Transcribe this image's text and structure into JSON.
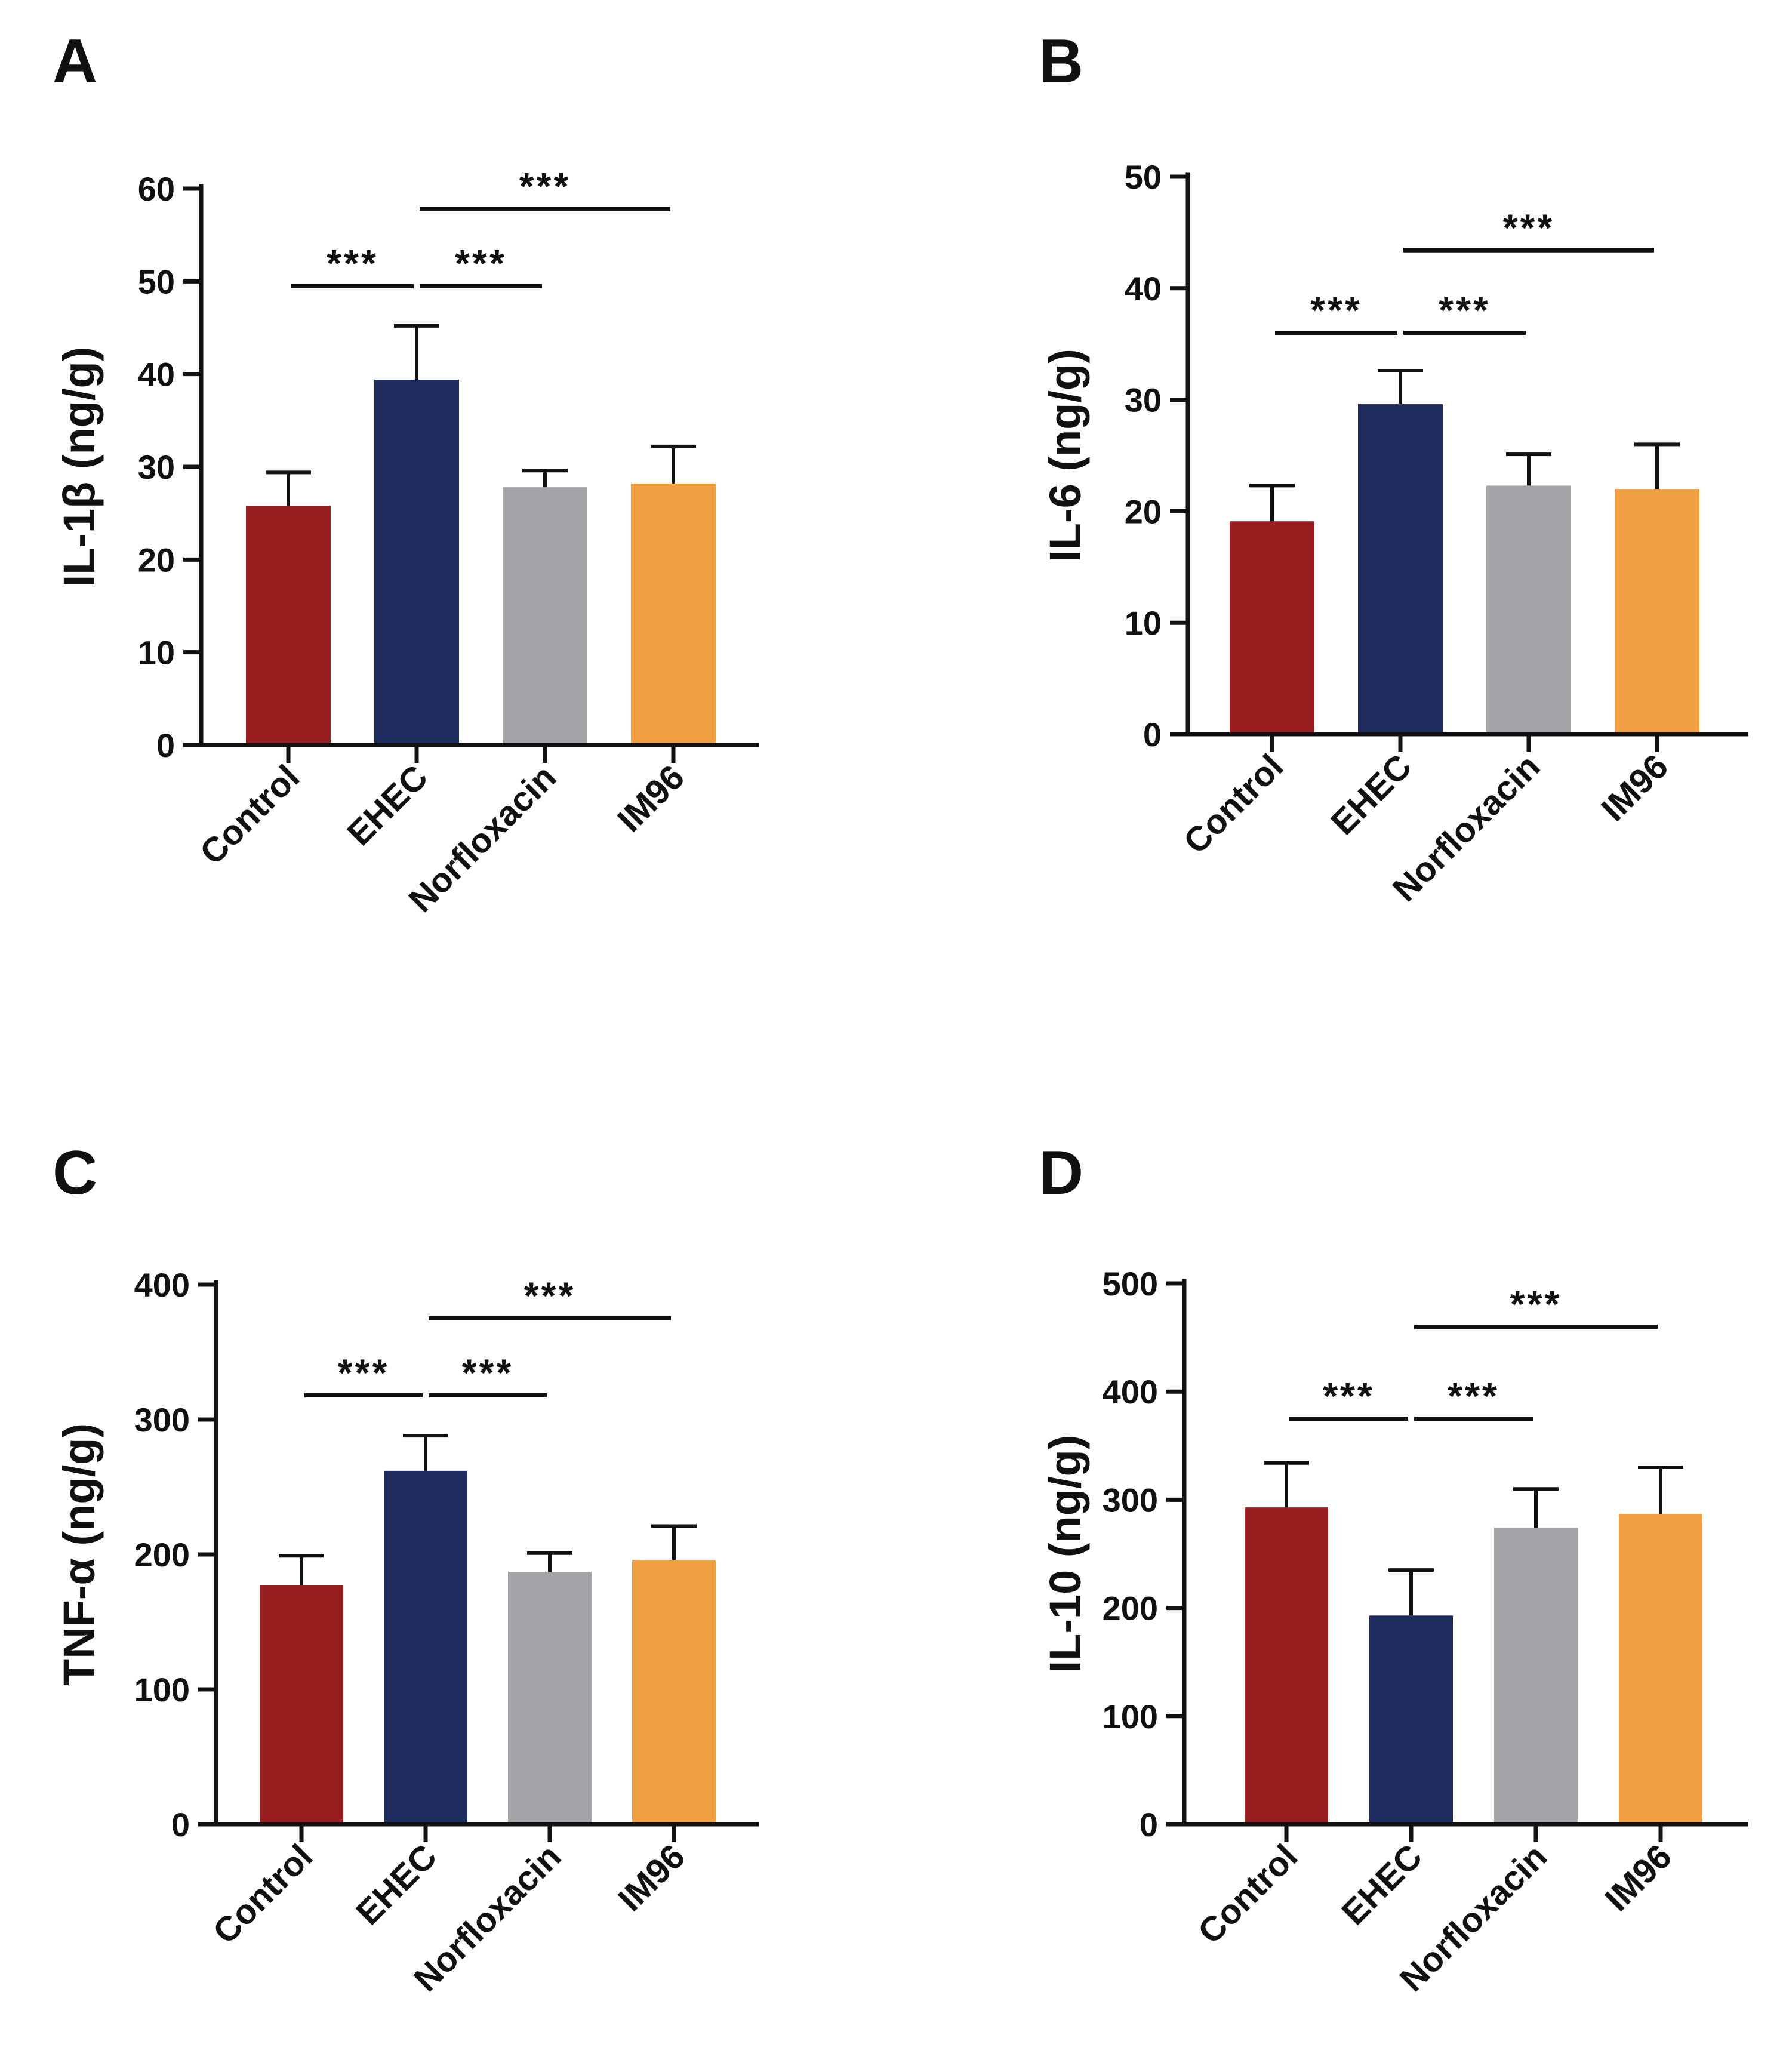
{
  "figure": {
    "panels": [
      "A",
      "B",
      "C",
      "D"
    ]
  },
  "chart_data": [
    {
      "panel": "A",
      "type": "bar",
      "title": "",
      "xlabel": "",
      "ylabel": "IL-1β (ng/g)",
      "categories": [
        "Control",
        "EHEC",
        "Norfloxacin",
        "IM96"
      ],
      "values": [
        25.8,
        39.4,
        27.8,
        28.2
      ],
      "errors": [
        3.6,
        5.8,
        1.8,
        4.0
      ],
      "colors": [
        "#981E22",
        "#1E2C5E",
        "#A3A4A7",
        "#F19F43"
      ],
      "ylim": [
        0,
        60
      ],
      "yticks": [
        "0",
        "10",
        "20",
        "30",
        "40",
        "50",
        "60"
      ],
      "significance": [
        {
          "from": 0,
          "to": 1,
          "label": "***",
          "level": 49.5
        },
        {
          "from": 1,
          "to": 2,
          "label": "***",
          "level": 49.5
        },
        {
          "from": 1,
          "to": 3,
          "label": "***",
          "level": 57.8
        }
      ]
    },
    {
      "panel": "B",
      "type": "bar",
      "title": "",
      "xlabel": "",
      "ylabel": "IL-6 (ng/g)",
      "categories": [
        "Control",
        "EHEC",
        "Norfloxacin",
        "IM96"
      ],
      "values": [
        19.1,
        29.6,
        22.3,
        22.0
      ],
      "errors": [
        3.2,
        3.0,
        2.8,
        4.0
      ],
      "colors": [
        "#981E22",
        "#1E2C5E",
        "#A3A4A7",
        "#F19F43"
      ],
      "ylim": [
        0,
        50
      ],
      "yticks": [
        "0",
        "10",
        "20",
        "30",
        "40",
        "50"
      ],
      "significance": [
        {
          "from": 0,
          "to": 1,
          "label": "***",
          "level": 36.0
        },
        {
          "from": 1,
          "to": 2,
          "label": "***",
          "level": 36.0
        },
        {
          "from": 1,
          "to": 3,
          "label": "***",
          "level": 43.4
        }
      ]
    },
    {
      "panel": "C",
      "type": "bar",
      "title": "",
      "xlabel": "",
      "ylabel": "TNF-α (ng/g)",
      "categories": [
        "Control",
        "EHEC",
        "Norfloxacin",
        "IM96"
      ],
      "values": [
        177,
        262,
        187,
        196
      ],
      "errors": [
        22,
        26,
        14,
        25
      ],
      "colors": [
        "#981E22",
        "#1E2C5E",
        "#A3A4A7",
        "#F19F43"
      ],
      "ylim": [
        0,
        400
      ],
      "yticks": [
        "0",
        "100",
        "200",
        "300",
        "400"
      ],
      "significance": [
        {
          "from": 0,
          "to": 1,
          "label": "***",
          "level": 318
        },
        {
          "from": 1,
          "to": 2,
          "label": "***",
          "level": 318
        },
        {
          "from": 1,
          "to": 3,
          "label": "***",
          "level": 375
        }
      ]
    },
    {
      "panel": "D",
      "type": "bar",
      "title": "",
      "xlabel": "",
      "ylabel": "IL-10 (ng/g)",
      "categories": [
        "Control",
        "EHEC",
        "Norfloxacin",
        "IM96"
      ],
      "values": [
        293,
        193,
        274,
        287
      ],
      "errors": [
        41,
        42,
        36,
        43
      ],
      "colors": [
        "#981E22",
        "#1E2C5E",
        "#A3A4A7",
        "#F19F43"
      ],
      "ylim": [
        0,
        500
      ],
      "yticks": [
        "0",
        "100",
        "200",
        "300",
        "400",
        "500"
      ],
      "significance": [
        {
          "from": 0,
          "to": 1,
          "label": "***",
          "level": 375
        },
        {
          "from": 1,
          "to": 2,
          "label": "***",
          "level": 375
        },
        {
          "from": 1,
          "to": 3,
          "label": "***",
          "level": 460
        }
      ]
    }
  ]
}
